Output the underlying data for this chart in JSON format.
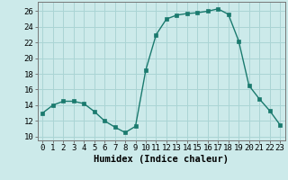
{
  "x": [
    0,
    1,
    2,
    3,
    4,
    5,
    6,
    7,
    8,
    9,
    10,
    11,
    12,
    13,
    14,
    15,
    16,
    17,
    18,
    19,
    20,
    21,
    22,
    23
  ],
  "y": [
    13.0,
    14.0,
    14.5,
    14.5,
    14.2,
    13.2,
    12.0,
    11.2,
    10.5,
    11.3,
    18.5,
    23.0,
    25.0,
    25.5,
    25.7,
    25.8,
    26.0,
    26.3,
    25.6,
    22.2,
    16.5,
    14.8,
    13.3,
    11.5
  ],
  "line_color": "#1a7a6e",
  "marker": "s",
  "marker_size": 2.5,
  "bg_color": "#cceaea",
  "grid_color": "#aad4d4",
  "xlabel": "Humidex (Indice chaleur)",
  "ylabel_ticks": [
    10,
    12,
    14,
    16,
    18,
    20,
    22,
    24,
    26
  ],
  "ylim": [
    9.5,
    27.2
  ],
  "xlim": [
    -0.5,
    23.5
  ],
  "xlabel_fontsize": 7.5,
  "tick_fontsize": 6.5,
  "line_width": 1.0
}
